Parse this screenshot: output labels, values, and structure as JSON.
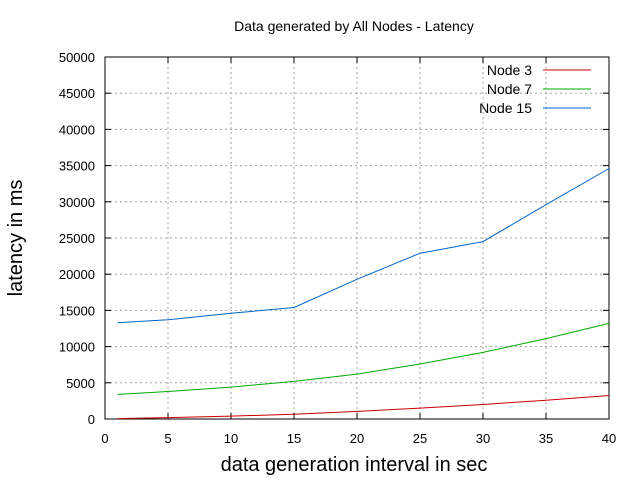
{
  "chart_data": {
    "type": "line",
    "title": "Data generated by All Nodes - Latency",
    "xlabel": "data generation interval in sec",
    "ylabel": "latency in ms",
    "xlim": [
      0,
      40
    ],
    "ylim": [
      0,
      50000
    ],
    "xticks": [
      0,
      5,
      10,
      15,
      20,
      25,
      30,
      35,
      40
    ],
    "yticks": [
      0,
      5000,
      10000,
      15000,
      20000,
      25000,
      30000,
      35000,
      40000,
      45000,
      50000
    ],
    "grid": true,
    "legend_position": "top-right",
    "x": [
      1,
      5,
      10,
      15,
      20,
      25,
      30,
      35,
      40
    ],
    "series": [
      {
        "name": "Node 3",
        "color": "#cc0000",
        "values": [
          50,
          200,
          400,
          650,
          1050,
          1500,
          2000,
          2600,
          3250
        ]
      },
      {
        "name": "Node 7",
        "color": "#00aa00",
        "values": [
          3400,
          3800,
          4400,
          5200,
          6200,
          7600,
          9200,
          11100,
          13200
        ]
      },
      {
        "name": "Node 15",
        "color": "#0066cc",
        "values": [
          13300,
          13700,
          14600,
          15400,
          19300,
          22900,
          24500,
          29600,
          34600
        ]
      }
    ]
  }
}
